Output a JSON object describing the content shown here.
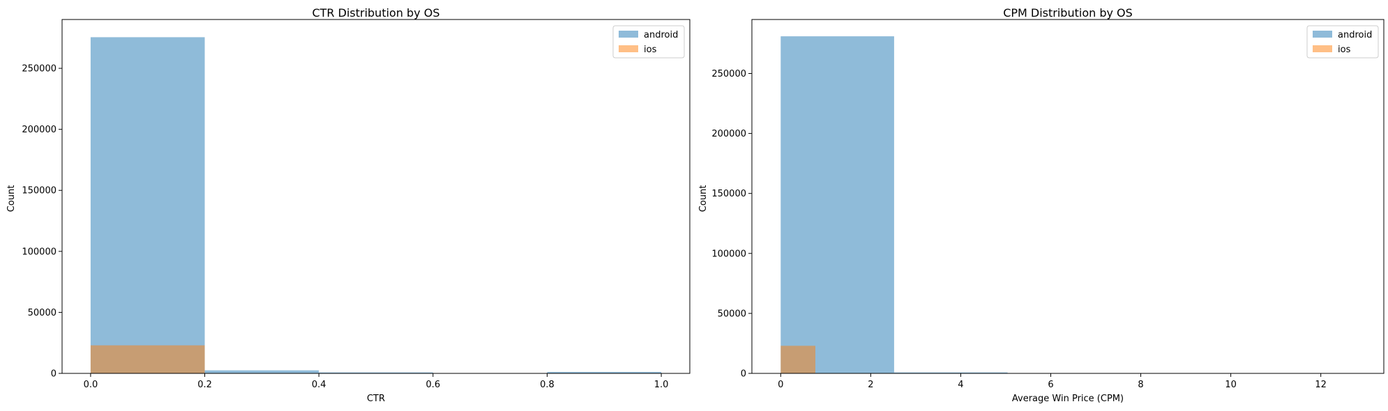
{
  "chart_data": [
    {
      "type": "bar",
      "title": "CTR Distribution by OS",
      "xlabel": "CTR",
      "ylabel": "Count",
      "xlim": [
        -0.05,
        1.05
      ],
      "ylim": [
        0,
        290000
      ],
      "xticks": [
        0.0,
        0.2,
        0.4,
        0.6,
        0.8,
        1.0
      ],
      "xtick_labels": [
        "0.0",
        "0.2",
        "0.4",
        "0.6",
        "0.8",
        "1.0"
      ],
      "yticks": [
        0,
        50000,
        100000,
        150000,
        200000,
        250000
      ],
      "ytick_labels": [
        "0",
        "50000",
        "100000",
        "150000",
        "200000",
        "250000"
      ],
      "legend_position": "upper right",
      "series": [
        {
          "name": "android",
          "color": "#1f77b4",
          "bins": [
            {
              "x0": 0.0,
              "x1": 0.2,
              "value": 275500
            },
            {
              "x0": 0.2,
              "x1": 0.4,
              "value": 2500
            },
            {
              "x0": 0.4,
              "x1": 0.6,
              "value": 800
            },
            {
              "x0": 0.6,
              "x1": 0.8,
              "value": 0
            },
            {
              "x0": 0.8,
              "x1": 1.0,
              "value": 1200
            }
          ]
        },
        {
          "name": "ios",
          "color": "#ff7f0e",
          "bins": [
            {
              "x0": 0.0,
              "x1": 0.2,
              "value": 23000
            },
            {
              "x0": 0.2,
              "x1": 0.4,
              "value": 200
            },
            {
              "x0": 0.4,
              "x1": 0.6,
              "value": 80
            },
            {
              "x0": 0.6,
              "x1": 0.8,
              "value": 0
            },
            {
              "x0": 0.8,
              "x1": 1.0,
              "value": 100
            }
          ]
        }
      ]
    },
    {
      "type": "bar",
      "title": "CPM Distribution by OS",
      "xlabel": "Average Win Price (CPM)",
      "ylabel": "Count",
      "xlim": [
        -0.64,
        13.4
      ],
      "ylim": [
        0,
        295000
      ],
      "xticks": [
        0,
        2,
        4,
        6,
        8,
        10,
        12
      ],
      "xtick_labels": [
        "0",
        "2",
        "4",
        "6",
        "8",
        "10",
        "12"
      ],
      "yticks": [
        0,
        50000,
        100000,
        150000,
        200000,
        250000
      ],
      "ytick_labels": [
        "0",
        "50000",
        "100000",
        "150000",
        "200000",
        "250000"
      ],
      "legend_position": "upper right",
      "series": [
        {
          "name": "android",
          "color": "#1f77b4",
          "bins": [
            {
              "x0": 0.0,
              "x1": 2.52,
              "value": 281000
            },
            {
              "x0": 2.52,
              "x1": 5.04,
              "value": 800
            },
            {
              "x0": 5.04,
              "x1": 7.56,
              "value": 100
            },
            {
              "x0": 7.56,
              "x1": 10.08,
              "value": 30
            },
            {
              "x0": 10.08,
              "x1": 12.6,
              "value": 20
            }
          ]
        },
        {
          "name": "ios",
          "color": "#ff7f0e",
          "bins": [
            {
              "x0": 0.0,
              "x1": 0.77,
              "value": 23000
            },
            {
              "x0": 0.77,
              "x1": 1.54,
              "value": 150
            },
            {
              "x0": 1.54,
              "x1": 2.31,
              "value": 30
            },
            {
              "x0": 2.31,
              "x1": 3.08,
              "value": 10
            },
            {
              "x0": 3.08,
              "x1": 3.85,
              "value": 5
            }
          ]
        }
      ]
    }
  ]
}
